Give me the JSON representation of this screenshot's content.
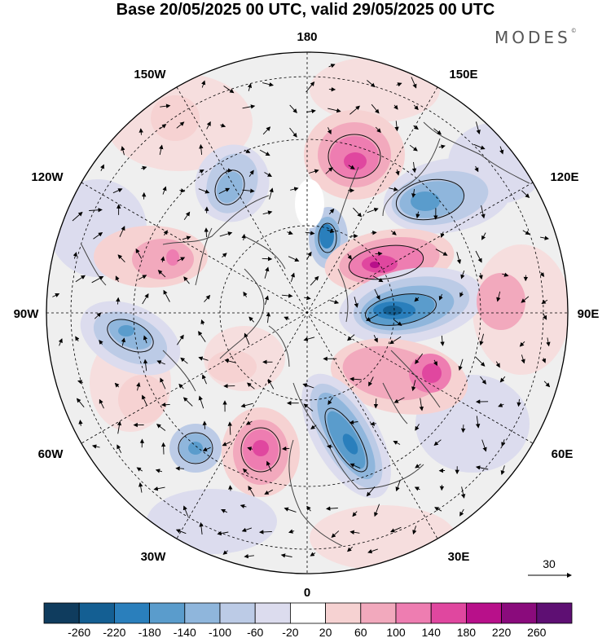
{
  "title": "Base 20/05/2025 00 UTC, valid 29/05/2025 00 UTC",
  "brand": "MODES",
  "brand_mark": "©",
  "map": {
    "projection": "north-polar-stereographic",
    "longitude_labels": {
      "top": "180",
      "bottom": "0",
      "left": "90W",
      "right": "90E",
      "upper_left_1": "150W",
      "upper_left_2": "120W",
      "lower_left_1": "60W",
      "lower_left_2": "30W",
      "upper_right_1": "150E",
      "upper_right_2": "120E",
      "lower_right_1": "60E",
      "lower_right_2": "30E"
    },
    "vector_reference": "30"
  },
  "colorbar": {
    "labels": [
      "-260",
      "-220",
      "-180",
      "-140",
      "-100",
      "-60",
      "-20",
      "20",
      "60",
      "100",
      "140",
      "180",
      "220",
      "260"
    ],
    "colors": [
      "#0f3c5e",
      "#145f93",
      "#2a7fbc",
      "#5a9ccc",
      "#8fb6dc",
      "#bccbe6",
      "#dcdcee",
      "#ffffff",
      "#f6d2d2",
      "#f2a9bd",
      "#ee7db1",
      "#e0479f",
      "#b8108a",
      "#8a0b7c",
      "#5e0f73"
    ]
  },
  "colors": {
    "ocean_land_background": "#eeeeee",
    "coast": "#444444"
  }
}
